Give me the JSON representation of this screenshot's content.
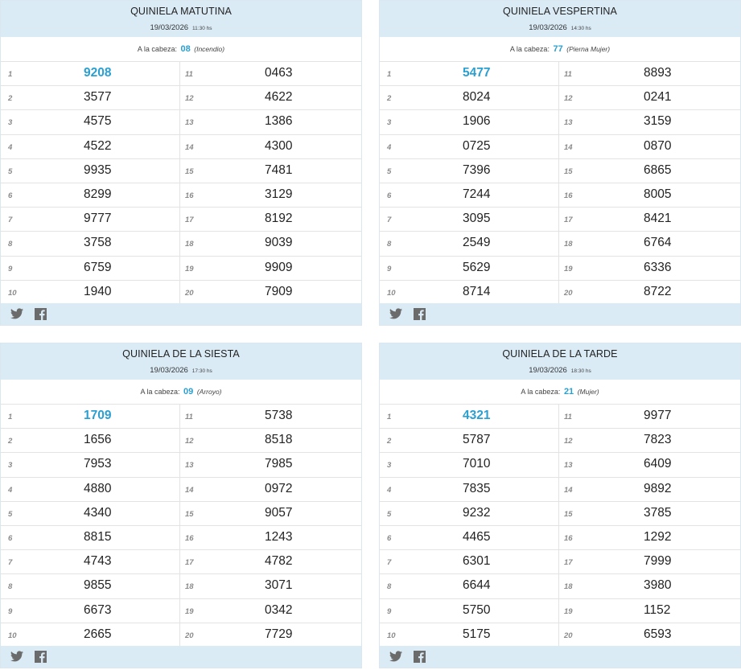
{
  "cabeza_label": "A la cabeza:",
  "cards": [
    {
      "title": "QUINIELA MATUTINA",
      "date": "19/03/2026",
      "time": "11:30 hs",
      "head_number": "08",
      "head_meaning": "(Incendio)",
      "numbers": [
        "9208",
        "3577",
        "4575",
        "4522",
        "9935",
        "8299",
        "9777",
        "3758",
        "6759",
        "1940",
        "0463",
        "4622",
        "1386",
        "4300",
        "7481",
        "3129",
        "8192",
        "9039",
        "9909",
        "7909"
      ]
    },
    {
      "title": "QUINIELA VESPERTINA",
      "date": "19/03/2026",
      "time": "14:30 hs",
      "head_number": "77",
      "head_meaning": "(Pierna Mujer)",
      "numbers": [
        "5477",
        "8024",
        "1906",
        "0725",
        "7396",
        "7244",
        "3095",
        "2549",
        "5629",
        "8714",
        "8893",
        "0241",
        "3159",
        "0870",
        "6865",
        "8005",
        "8421",
        "6764",
        "6336",
        "8722"
      ]
    },
    {
      "title": "QUINIELA DE LA SIESTA",
      "date": "19/03/2026",
      "time": "17:30 hs",
      "head_number": "09",
      "head_meaning": "(Arroyo)",
      "numbers": [
        "1709",
        "1656",
        "7953",
        "4880",
        "4340",
        "8815",
        "4743",
        "9855",
        "6673",
        "2665",
        "5738",
        "8518",
        "7985",
        "0972",
        "9057",
        "1243",
        "4782",
        "3071",
        "0342",
        "7729"
      ]
    },
    {
      "title": "QUINIELA DE LA TARDE",
      "date": "19/03/2026",
      "time": "18:30 hs",
      "head_number": "21",
      "head_meaning": "(Mujer)",
      "numbers": [
        "4321",
        "5787",
        "7010",
        "7835",
        "9232",
        "4465",
        "6301",
        "6644",
        "5750",
        "5175",
        "9977",
        "7823",
        "6409",
        "9892",
        "3785",
        "1292",
        "7999",
        "3980",
        "1152",
        "6593"
      ]
    }
  ],
  "icons": {
    "share_1": "twitter-icon",
    "share_2": "facebook-icon"
  },
  "colors": {
    "accent": "#2a9fd0",
    "header_bg": "#daebf6"
  }
}
